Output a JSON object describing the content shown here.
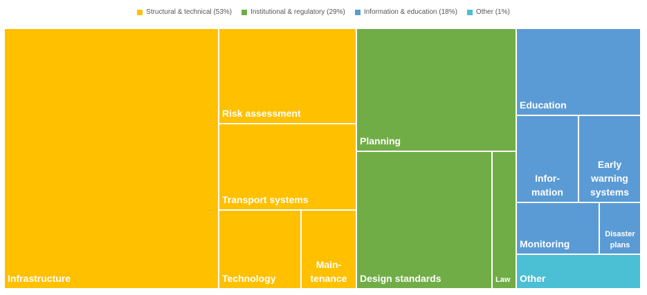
{
  "legend": [
    {
      "label": "Structural & technical (53%)",
      "color": "#FFC000"
    },
    {
      "label": "Institutional & regulatory (29%)",
      "color": "#70AD47"
    },
    {
      "label": "Information & education (18%)",
      "color": "#5B9BD5"
    },
    {
      "label": "Other (1%)",
      "color": "#4BBFD4"
    }
  ],
  "chart_data": {
    "type": "treemap",
    "title": "",
    "groups": [
      {
        "name": "Structural & technical",
        "percent": 53,
        "color": "#FFC000",
        "items": [
          "Infrastructure",
          "Risk assessment",
          "Transport systems",
          "Technology",
          "Main-\ntenance"
        ]
      },
      {
        "name": "Institutional & regulatory",
        "percent": 29,
        "color": "#70AD47",
        "items": [
          "Planning",
          "Design standards",
          "Law"
        ]
      },
      {
        "name": "Information & education",
        "percent": 18,
        "color": "#5B9BD5",
        "items": [
          "Education",
          "Infor-\nmation",
          "Early\nwarning\nsystems",
          "Monitoring",
          "Disaster\nplans"
        ]
      },
      {
        "name": "Other",
        "percent": 1,
        "color": "#4BBFD4",
        "items": [
          "Other"
        ]
      }
    ]
  }
}
